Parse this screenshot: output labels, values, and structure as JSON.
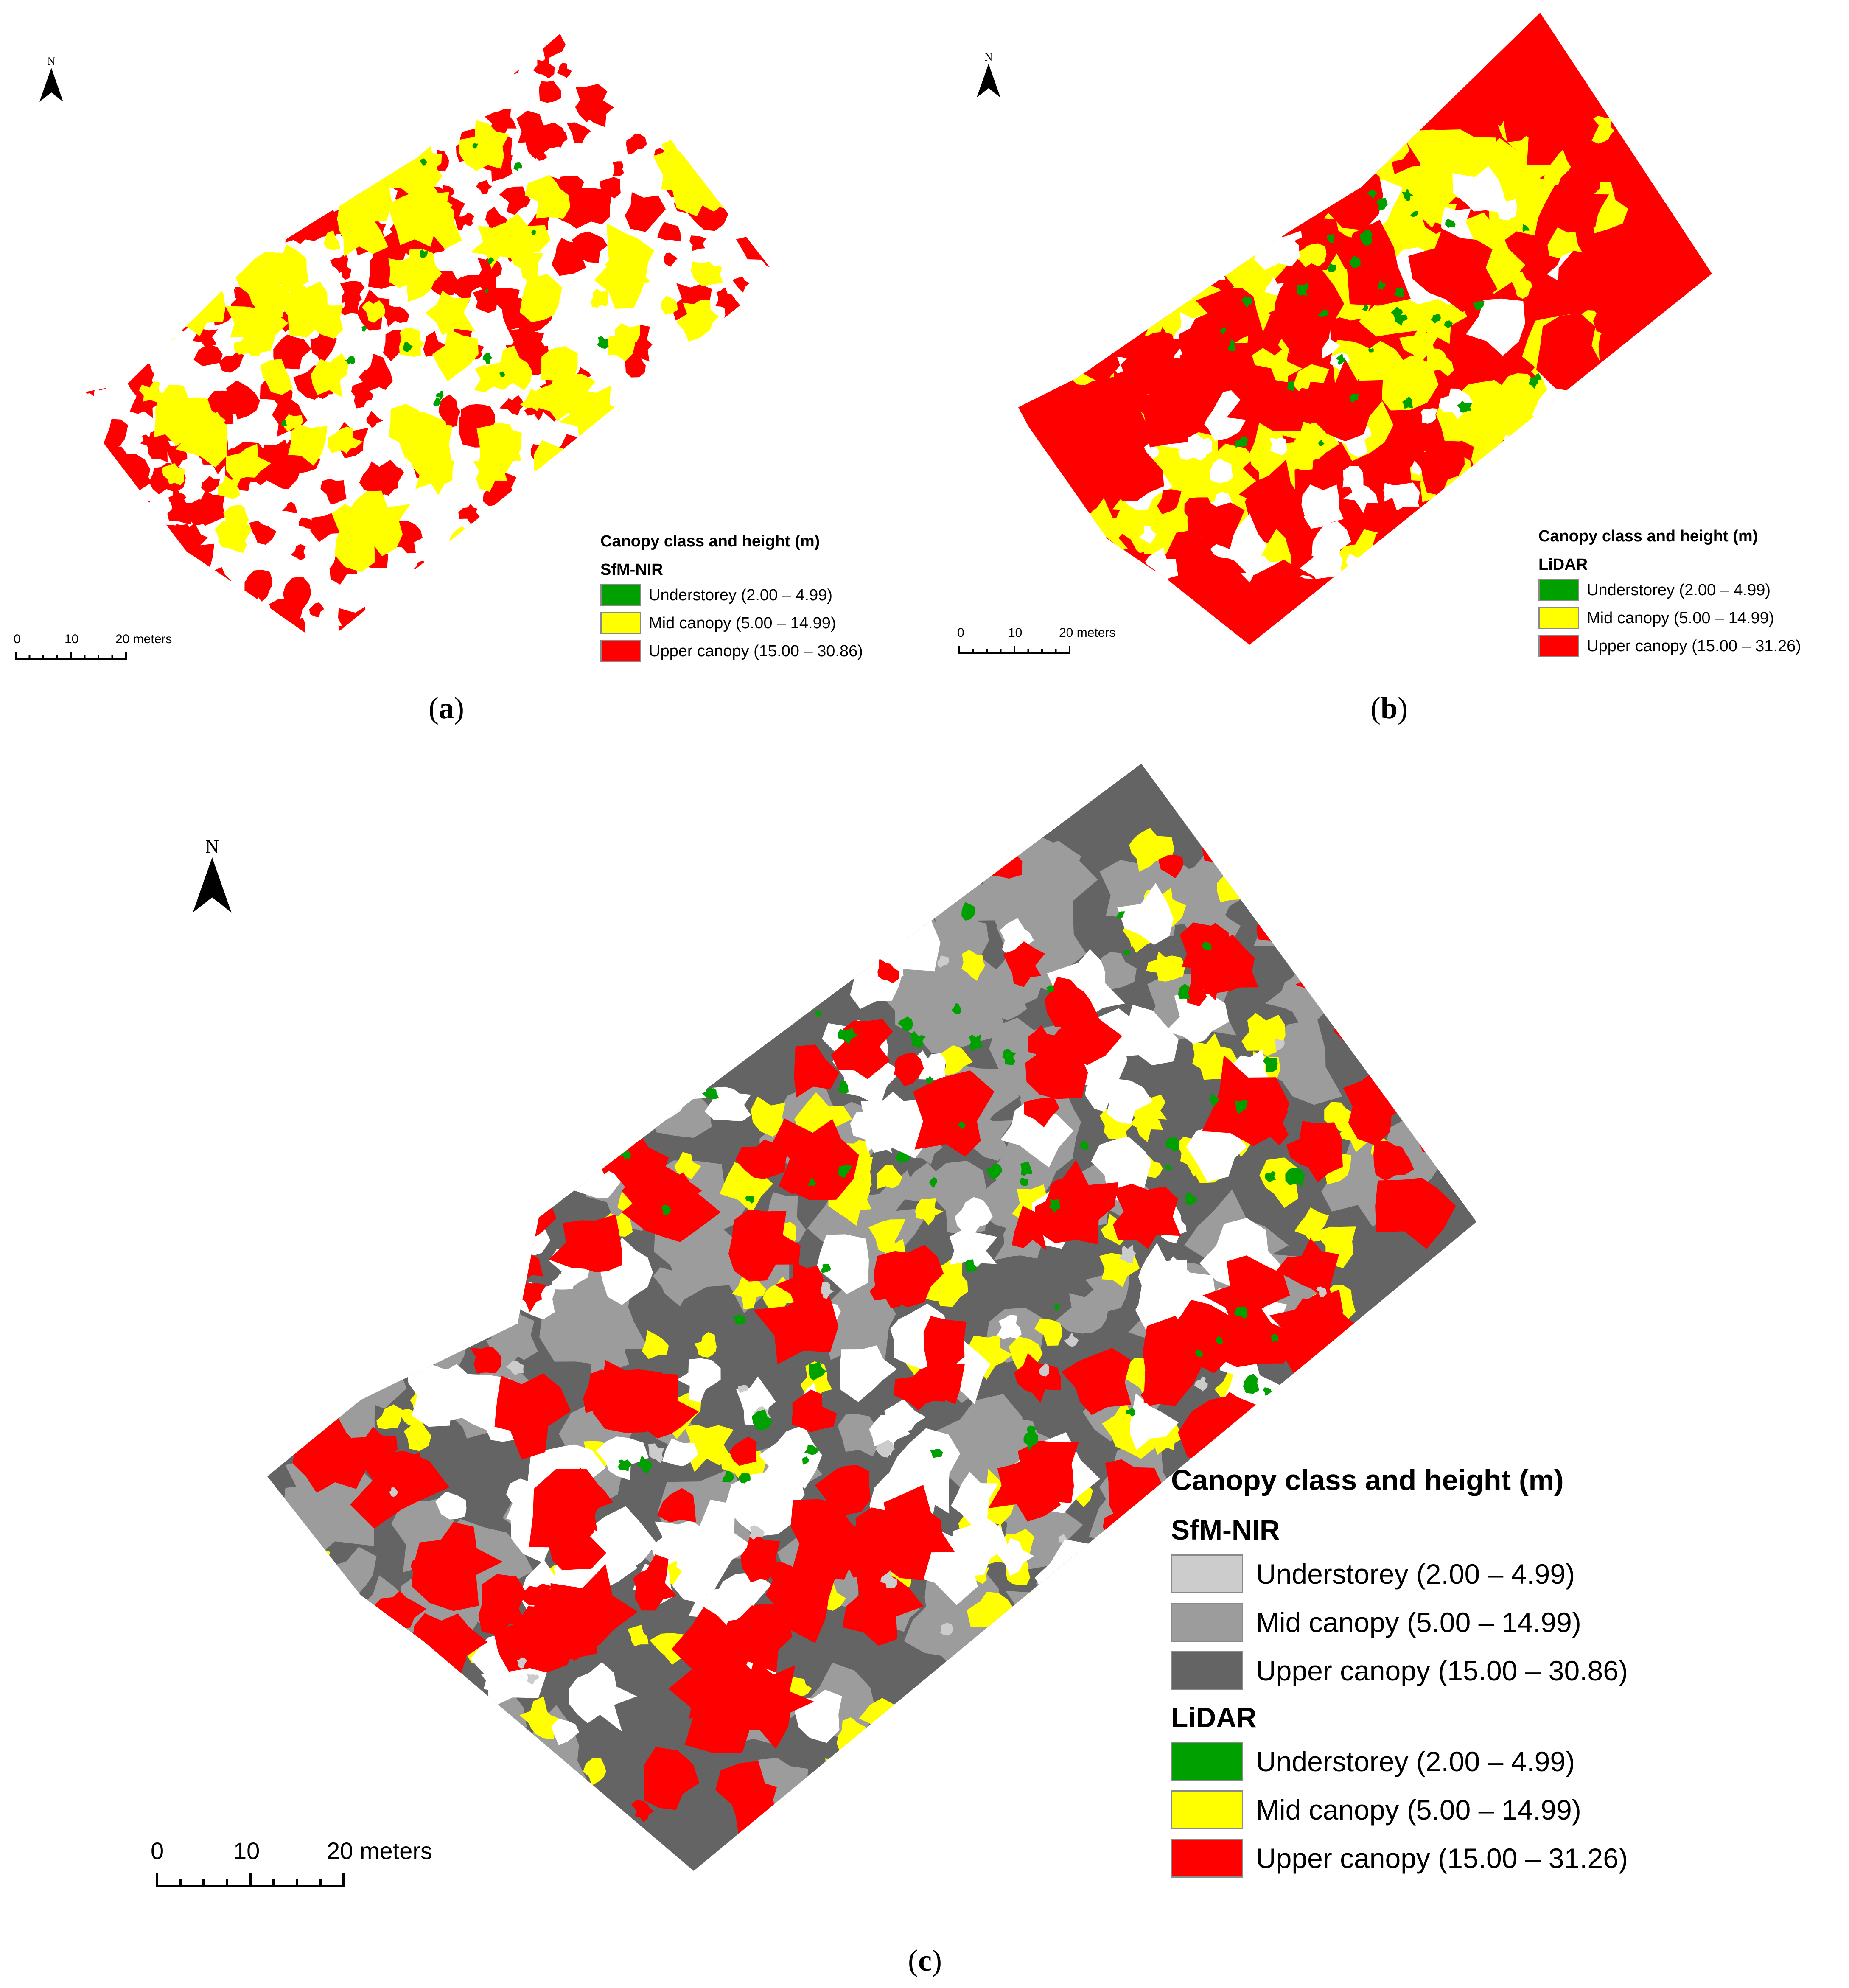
{
  "north_label": "N",
  "colors": {
    "lidar_understorey": "#00a000",
    "lidar_mid": "#ffff00",
    "lidar_upper": "#ff0000",
    "sfm_understorey": "#cccccc",
    "sfm_mid": "#9c9c9c",
    "sfm_upper": "#646464",
    "swatch_border": "#8a8a8a"
  },
  "scale": {
    "tick_0": "0",
    "tick_10": "10",
    "tick_20": "20 meters"
  },
  "panels": {
    "a": {
      "caption_open": "(",
      "caption_letter": "a",
      "caption_close": ")",
      "legend": {
        "title": "Canopy class and height (m)",
        "groups": [
          {
            "name": "SfM-NIR",
            "items": [
              {
                "label": "Understorey (2.00 – 4.99)",
                "color": "#00a000"
              },
              {
                "label": "Mid canopy (5.00 – 14.99)",
                "color": "#ffff00"
              },
              {
                "label": "Upper canopy (15.00 – 30.86)",
                "color": "#ff0000"
              }
            ]
          }
        ]
      }
    },
    "b": {
      "caption_open": "(",
      "caption_letter": "b",
      "caption_close": ")",
      "legend": {
        "title": "Canopy class and height (m)",
        "groups": [
          {
            "name": "LiDAR",
            "items": [
              {
                "label": "Understorey (2.00 – 4.99)",
                "color": "#00a000"
              },
              {
                "label": "Mid canopy (5.00 – 14.99)",
                "color": "#ffff00"
              },
              {
                "label": "Upper canopy (15.00 – 31.26)",
                "color": "#ff0000"
              }
            ]
          }
        ]
      }
    },
    "c": {
      "caption_open": "(",
      "caption_letter": "c",
      "caption_close": ")",
      "legend": {
        "title": "Canopy class and height (m)",
        "groups": [
          {
            "name": "SfM-NIR",
            "items": [
              {
                "label": "Understorey (2.00 – 4.99)",
                "color": "#cccccc"
              },
              {
                "label": "Mid canopy (5.00 – 14.99)",
                "color": "#9c9c9c"
              },
              {
                "label": "Upper canopy (15.00 – 30.86)",
                "color": "#646464"
              }
            ]
          },
          {
            "name": "LiDAR",
            "items": [
              {
                "label": "Understorey (2.00 – 4.99)",
                "color": "#00a000"
              },
              {
                "label": "Mid canopy (5.00 – 14.99)",
                "color": "#ffff00"
              },
              {
                "label": "Upper canopy (15.00 – 31.26)",
                "color": "#ff0000"
              }
            ]
          }
        ]
      }
    }
  }
}
